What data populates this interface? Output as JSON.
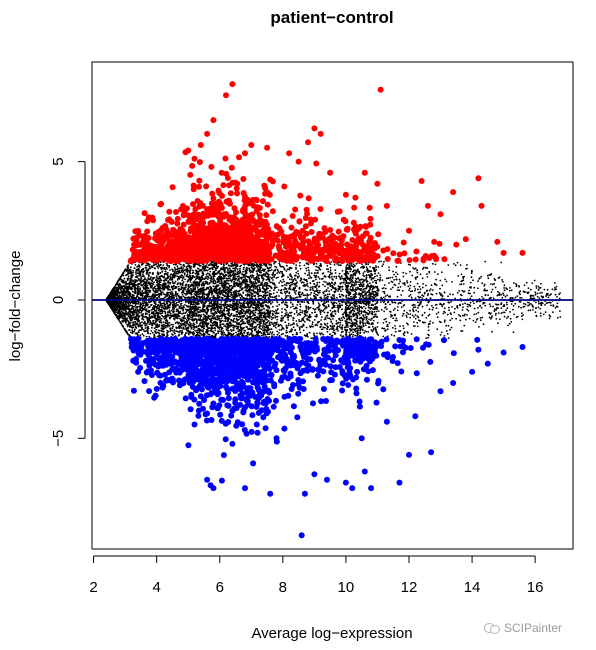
{
  "chart_data": {
    "type": "scatter",
    "title": "patient−control",
    "xlabel": "Average log−expression",
    "ylabel": "log−fold−change",
    "xlim": [
      1.95,
      17.2
    ],
    "ylim": [
      -9.0,
      8.6
    ],
    "xticks": [
      "2",
      "4",
      "6",
      "8",
      "10",
      "12",
      "14",
      "16"
    ],
    "yticks": [
      "−5",
      "0",
      "5"
    ],
    "hline": {
      "y": 0,
      "color": "#00008b"
    },
    "grid": false,
    "legend": "none",
    "series": [
      {
        "color": "#ff0000",
        "points": [
          [
            6.4,
            7.8
          ],
          [
            6.2,
            7.4
          ],
          [
            11.1,
            7.6
          ],
          [
            5.8,
            6.5
          ],
          [
            5.6,
            6.0
          ],
          [
            5.4,
            5.6
          ],
          [
            9.0,
            6.2
          ],
          [
            9.2,
            6.0
          ],
          [
            8.8,
            5.7
          ],
          [
            7.0,
            5.6
          ],
          [
            7.5,
            5.5
          ],
          [
            6.8,
            5.3
          ],
          [
            8.2,
            5.3
          ],
          [
            5.2,
            5.1
          ],
          [
            5.0,
            5.4
          ],
          [
            8.5,
            5.0
          ],
          [
            9.5,
            4.6
          ],
          [
            11.0,
            4.2
          ],
          [
            10.6,
            4.6
          ],
          [
            12.4,
            4.3
          ],
          [
            13.4,
            3.9
          ],
          [
            14.2,
            4.4
          ],
          [
            14.3,
            3.4
          ],
          [
            12.6,
            3.4
          ],
          [
            13.0,
            3.1
          ],
          [
            11.3,
            3.4
          ],
          [
            10.0,
            3.8
          ],
          [
            10.3,
            3.7
          ],
          [
            9.8,
            3.2
          ],
          [
            13.8,
            2.2
          ],
          [
            14.8,
            2.1
          ],
          [
            15.0,
            1.7
          ],
          [
            15.6,
            1.7
          ],
          [
            12.0,
            2.5
          ],
          [
            12.8,
            2.1
          ],
          [
            13.5,
            2.0
          ]
        ]
      },
      {
        "color": "#0000ff",
        "points": [
          [
            8.6,
            -8.5
          ],
          [
            8.7,
            -7.0
          ],
          [
            7.6,
            -7.0
          ],
          [
            6.8,
            -6.8
          ],
          [
            5.8,
            -6.8
          ],
          [
            5.6,
            -6.5
          ],
          [
            10.2,
            -6.8
          ],
          [
            10.0,
            -6.6
          ],
          [
            10.8,
            -6.8
          ],
          [
            10.6,
            -6.2
          ],
          [
            9.4,
            -6.5
          ],
          [
            9.0,
            -6.3
          ],
          [
            11.7,
            -6.6
          ],
          [
            12.0,
            -5.6
          ],
          [
            12.7,
            -5.5
          ],
          [
            10.5,
            -5.0
          ],
          [
            11.3,
            -4.4
          ],
          [
            12.2,
            -4.2
          ],
          [
            13.0,
            -3.3
          ],
          [
            13.4,
            -3.0
          ],
          [
            14.0,
            -2.6
          ],
          [
            14.5,
            -2.3
          ],
          [
            15.0,
            -1.9
          ],
          [
            15.6,
            -1.7
          ],
          [
            14.2,
            -1.8
          ],
          [
            6.4,
            -5.2
          ],
          [
            5.2,
            -4.5
          ],
          [
            7.2,
            -4.8
          ],
          [
            7.8,
            -5.0
          ]
        ]
      }
    ]
  },
  "watermark": {
    "text": "SCIPainter"
  }
}
